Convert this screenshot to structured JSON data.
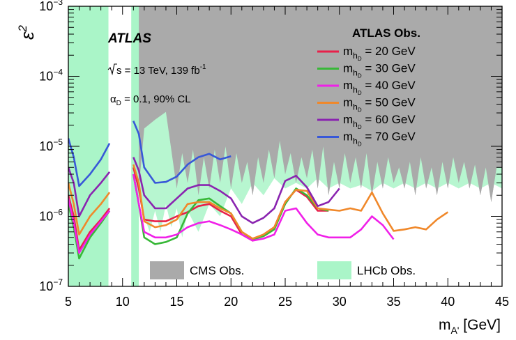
{
  "chart_data": {
    "type": "line",
    "xlabel_main": "m",
    "xlabel_sub": "A'",
    "xlabel_unit": " [GeV]",
    "ylabel": "ε",
    "ylabel_sup": "2",
    "xlim": [
      5,
      45
    ],
    "ylim": [
      1e-07,
      0.001
    ],
    "yscale": "log",
    "x_ticks": [
      5,
      10,
      15,
      20,
      25,
      30,
      35,
      40,
      45
    ],
    "y_ticks": [
      {
        "base": "10",
        "exp": "−7",
        "value": 1e-07
      },
      {
        "base": "10",
        "exp": "−6",
        "value": 1e-06
      },
      {
        "base": "10",
        "exp": "−5",
        "value": 1e-05
      },
      {
        "base": "10",
        "exp": "−4",
        "value": 0.0001
      },
      {
        "base": "10",
        "exp": "−3",
        "value": 0.001
      }
    ],
    "annotations": {
      "experiment": "ATLAS",
      "energy_pre": "s = 13 TeV, 139 fb",
      "energy_sup": "-1",
      "alpha_main": "α",
      "alpha_sub": "D",
      "alpha_rest": " = 0.1, 90% CL"
    },
    "legend": {
      "title": "ATLAS Obs.",
      "placement": "top-right",
      "label_main": "m",
      "label_sub1": "h",
      "label_sub2": "D",
      "bottom_entries": [
        {
          "label": "CMS Obs.",
          "color": "#aaaaaa"
        },
        {
          "label": "LHCb Obs.",
          "color": "#aaf5c8"
        }
      ]
    },
    "series": [
      {
        "value_label": " = 20 GeV",
        "color": "#e8204a",
        "segments": [
          [
            [
              5,
              2e-06
            ],
            [
              5.5,
              1e-06
            ],
            [
              6,
              3.3e-07
            ],
            [
              7,
              6e-07
            ],
            [
              8,
              9e-07
            ],
            [
              8.8,
              1.3e-06
            ]
          ],
          [
            [
              11,
              5e-06
            ],
            [
              11.5,
              2.5e-06
            ],
            [
              12,
              9e-07
            ],
            [
              13,
              8.5e-07
            ],
            [
              14,
              8.5e-07
            ],
            [
              15,
              1e-06
            ],
            [
              16,
              1.15e-06
            ],
            [
              17,
              1.4e-06
            ],
            [
              18,
              1.5e-06
            ],
            [
              19,
              1.2e-06
            ],
            [
              20,
              1e-06
            ],
            [
              21,
              5.5e-07
            ],
            [
              22,
              4.5e-07
            ],
            [
              23,
              5.5e-07
            ],
            [
              24,
              7e-07
            ],
            [
              25,
              1.6e-06
            ],
            [
              26,
              2.4e-06
            ],
            [
              27,
              1.9e-06
            ],
            [
              28,
              1.2e-06
            ],
            [
              29,
              1.2e-06
            ]
          ]
        ]
      },
      {
        "value_label": " = 30 GeV",
        "color": "#38b838",
        "segments": [
          [
            [
              5,
              1.5e-06
            ],
            [
              5.5,
              7e-07
            ],
            [
              6,
              2.5e-07
            ],
            [
              7,
              5e-07
            ],
            [
              8,
              8e-07
            ],
            [
              8.8,
              1.2e-06
            ]
          ],
          [
            [
              11,
              4e-06
            ],
            [
              11.5,
              1.5e-06
            ],
            [
              12,
              5e-07
            ],
            [
              13,
              4e-07
            ],
            [
              14,
              4.3e-07
            ],
            [
              15,
              5e-07
            ],
            [
              16,
              1.1e-06
            ],
            [
              17,
              1.7e-06
            ],
            [
              18,
              1.8e-06
            ],
            [
              19,
              1.4e-06
            ],
            [
              20,
              1.1e-06
            ],
            [
              21,
              6e-07
            ],
            [
              22,
              4.7e-07
            ],
            [
              23,
              5.2e-07
            ],
            [
              24,
              6.5e-07
            ],
            [
              25,
              1.5e-06
            ],
            [
              26,
              2.5e-06
            ],
            [
              27,
              2e-06
            ],
            [
              28,
              1.3e-06
            ],
            [
              29,
              1.2e-06
            ]
          ]
        ]
      },
      {
        "value_label": " = 40 GeV",
        "color": "#f020e8",
        "segments": [
          [
            [
              5,
              1.8e-06
            ],
            [
              5.5,
              8e-07
            ],
            [
              6,
              3e-07
            ],
            [
              7,
              5.5e-07
            ],
            [
              8,
              8.5e-07
            ],
            [
              8.8,
              1.2e-06
            ]
          ],
          [
            [
              11,
              4e-06
            ],
            [
              11.5,
              1.5e-06
            ],
            [
              12,
              6e-07
            ],
            [
              13,
              5e-07
            ],
            [
              14,
              5e-07
            ],
            [
              15,
              5.5e-07
            ],
            [
              16,
              7e-07
            ],
            [
              17,
              8e-07
            ],
            [
              18,
              8.5e-07
            ],
            [
              19,
              7.5e-07
            ],
            [
              20,
              6.5e-07
            ],
            [
              21,
              5.5e-07
            ],
            [
              22,
              4.5e-07
            ],
            [
              23,
              4.8e-07
            ],
            [
              24,
              5.5e-07
            ],
            [
              25,
              1.2e-06
            ],
            [
              26,
              1.3e-06
            ],
            [
              27,
              8e-07
            ],
            [
              28,
              5.5e-07
            ],
            [
              29,
              5e-07
            ],
            [
              30,
              5e-07
            ],
            [
              31,
              5e-07
            ],
            [
              32,
              6.5e-07
            ],
            [
              33,
              1e-06
            ],
            [
              34,
              7.5e-07
            ],
            [
              35,
              4.7e-07
            ]
          ]
        ]
      },
      {
        "value_label": " = 50 GeV",
        "color": "#f0882a",
        "segments": [
          [
            [
              5,
              3e-06
            ],
            [
              5.5,
              1.5e-06
            ],
            [
              6,
              5.5e-07
            ],
            [
              7,
              1e-06
            ],
            [
              8,
              1.5e-06
            ],
            [
              8.8,
              2.2e-06
            ]
          ],
          [
            [
              11,
              5.5e-06
            ],
            [
              11.5,
              3e-06
            ],
            [
              12,
              8.5e-07
            ],
            [
              13,
              7e-07
            ],
            [
              14,
              7.5e-07
            ],
            [
              15,
              9e-07
            ],
            [
              16,
              1.5e-06
            ],
            [
              17,
              1.6e-06
            ],
            [
              18,
              1.6e-06
            ],
            [
              19,
              1.3e-06
            ],
            [
              20,
              1.1e-06
            ],
            [
              21,
              6e-07
            ],
            [
              22,
              4.8e-07
            ],
            [
              23,
              5.5e-07
            ],
            [
              24,
              7e-07
            ],
            [
              25,
              1.6e-06
            ],
            [
              26,
              2.4e-06
            ],
            [
              27,
              2.3e-06
            ],
            [
              28,
              1.3e-06
            ],
            [
              29,
              1.25e-06
            ],
            [
              30,
              1.2e-06
            ],
            [
              31,
              1.3e-06
            ],
            [
              32,
              1.2e-06
            ],
            [
              33,
              2.2e-06
            ],
            [
              34,
              1.1e-06
            ],
            [
              35,
              6.2e-07
            ],
            [
              36,
              6.5e-07
            ],
            [
              37,
              7e-07
            ],
            [
              38,
              6.5e-07
            ],
            [
              39,
              9e-07
            ],
            [
              40,
              1.15e-06
            ]
          ]
        ]
      },
      {
        "value_label": " = 60 GeV",
        "color": "#8a24b0",
        "segments": [
          [
            [
              5,
              5e-06
            ],
            [
              5.5,
              3e-06
            ],
            [
              6,
              1e-06
            ],
            [
              7,
              2e-06
            ],
            [
              8,
              3e-06
            ],
            [
              8.8,
              4.3e-06
            ]
          ],
          [
            [
              11,
              7e-06
            ],
            [
              11.5,
              4.5e-06
            ],
            [
              12,
              2e-06
            ],
            [
              13,
              1.3e-06
            ],
            [
              14,
              1.3e-06
            ],
            [
              15,
              1.8e-06
            ],
            [
              16,
              2.5e-06
            ],
            [
              17,
              2.8e-06
            ],
            [
              18,
              2.8e-06
            ],
            [
              19,
              2.3e-06
            ],
            [
              20,
              1.8e-06
            ],
            [
              21,
              1e-06
            ],
            [
              22,
              8e-07
            ],
            [
              23,
              9.5e-07
            ],
            [
              24,
              1.3e-06
            ],
            [
              25,
              3.2e-06
            ],
            [
              26,
              3.8e-06
            ],
            [
              27,
              2.6e-06
            ],
            [
              28,
              1.4e-06
            ],
            [
              29,
              1.6e-06
            ],
            [
              30,
              2.5e-06
            ]
          ]
        ]
      },
      {
        "value_label": " = 70 GeV",
        "color": "#3858d8",
        "segments": [
          [
            [
              5,
              1.3e-05
            ],
            [
              5.5,
              7e-06
            ],
            [
              6,
              2.7e-06
            ],
            [
              7,
              4e-06
            ],
            [
              8,
              6.5e-06
            ],
            [
              8.8,
              1.1e-05
            ]
          ],
          [
            [
              11,
              2.3e-05
            ],
            [
              11.5,
              1.5e-05
            ],
            [
              12,
              5e-06
            ],
            [
              13,
              3e-06
            ],
            [
              14,
              3.1e-06
            ],
            [
              15,
              3.7e-06
            ],
            [
              16,
              5.5e-06
            ],
            [
              17,
              7e-06
            ],
            [
              18,
              7.8e-06
            ],
            [
              19,
              6.5e-06
            ],
            [
              20,
              7.2e-06
            ]
          ]
        ]
      }
    ],
    "cms_region": {
      "color": "#aaaaaa",
      "xrange": [
        11.5,
        45
      ],
      "boundary": [
        [
          11.5,
          2.5e-06
        ],
        [
          12,
          1.8e-05
        ],
        [
          13,
          2.4e-05
        ],
        [
          14,
          3.1e-05
        ],
        [
          15,
          2.5e-06
        ],
        [
          15.5,
          8e-06
        ],
        [
          16,
          3e-06
        ],
        [
          16.5,
          9e-06
        ],
        [
          17,
          2e-06
        ],
        [
          17.5,
          7e-06
        ],
        [
          18,
          2.5e-06
        ],
        [
          18.5,
          9e-06
        ],
        [
          19,
          3e-06
        ],
        [
          19.5,
          1e-05
        ],
        [
          20,
          2.5e-06
        ],
        [
          20.5,
          8e-06
        ],
        [
          21,
          3e-06
        ],
        [
          21.5,
          6e-06
        ],
        [
          22,
          2e-06
        ],
        [
          22.5,
          7e-06
        ],
        [
          23,
          3e-06
        ],
        [
          23.5,
          9e-06
        ],
        [
          24,
          3.5e-06
        ],
        [
          24.5,
          1.2e-05
        ],
        [
          25,
          4e-06
        ],
        [
          25.5,
          8e-06
        ],
        [
          26,
          3e-06
        ],
        [
          26.5,
          7e-06
        ],
        [
          27,
          3.5e-06
        ],
        [
          27.5,
          9e-06
        ],
        [
          28,
          2.5e-06
        ],
        [
          28.5,
          1e-05
        ],
        [
          29,
          2e-06
        ],
        [
          29.5,
          6e-06
        ],
        [
          30,
          2.5e-06
        ],
        [
          30.5,
          8e-06
        ],
        [
          31,
          3e-06
        ],
        [
          31.5,
          7e-06
        ],
        [
          32,
          2.5e-06
        ],
        [
          32.5,
          8e-06
        ],
        [
          33,
          2e-06
        ],
        [
          33.5,
          6e-06
        ],
        [
          34,
          2.5e-06
        ],
        [
          34.5,
          7e-06
        ],
        [
          35,
          3e-06
        ],
        [
          35.5,
          5e-06
        ],
        [
          36,
          2.5e-06
        ],
        [
          36.5,
          6e-06
        ],
        [
          37,
          2e-06
        ],
        [
          37.5,
          7e-06
        ],
        [
          38,
          2.5e-06
        ],
        [
          38.5,
          5e-06
        ],
        [
          39,
          2e-06
        ],
        [
          39.5,
          6e-06
        ],
        [
          40,
          2.5e-06
        ],
        [
          40.5,
          7e-06
        ],
        [
          41,
          3e-06
        ],
        [
          41.5,
          6e-06
        ],
        [
          42,
          2.5e-06
        ],
        [
          42.5,
          5.5e-06
        ],
        [
          43,
          2e-06
        ],
        [
          43.5,
          5e-06
        ],
        [
          44,
          1.6e-06
        ],
        [
          44.5,
          5e-06
        ],
        [
          45,
          5e-06
        ]
      ]
    },
    "lhcb_region": {
      "color": "#aaf5c8",
      "bands": [
        [
          5,
          8.7
        ],
        [
          10.8,
          11.5
        ]
      ],
      "boundary": [
        [
          11.5,
          2e-06
        ],
        [
          12,
          1e-06
        ],
        [
          12.5,
          6e-07
        ],
        [
          13,
          1.2e-06
        ],
        [
          13.5,
          6e-07
        ],
        [
          14,
          1.5e-06
        ],
        [
          14.5,
          7e-07
        ],
        [
          15,
          1.3e-06
        ],
        [
          15.5,
          5e-07
        ],
        [
          16,
          1.2e-06
        ],
        [
          17,
          6e-07
        ],
        [
          18,
          1.5e-06
        ],
        [
          19,
          1e-06
        ],
        [
          20,
          2.5e-06
        ],
        [
          21,
          1.5e-06
        ],
        [
          22,
          3e-06
        ],
        [
          23,
          2e-06
        ],
        [
          24,
          3.5e-06
        ],
        [
          25,
          2.5e-06
        ],
        [
          26,
          3e-06
        ],
        [
          27,
          2.5e-06
        ],
        [
          28,
          3.5e-06
        ],
        [
          29,
          2.5e-06
        ],
        [
          30,
          3e-06
        ],
        [
          31,
          2.5e-06
        ],
        [
          32,
          2.8e-06
        ],
        [
          33,
          2.3e-06
        ],
        [
          34,
          3e-06
        ],
        [
          35,
          2.5e-06
        ],
        [
          36,
          3e-06
        ],
        [
          37,
          2.5e-06
        ],
        [
          38,
          3e-06
        ],
        [
          39,
          2.5e-06
        ],
        [
          40,
          3e-06
        ],
        [
          41,
          2.5e-06
        ],
        [
          42,
          3e-06
        ],
        [
          43,
          2.5e-06
        ],
        [
          44,
          3e-06
        ],
        [
          45,
          2.5e-06
        ]
      ]
    }
  }
}
